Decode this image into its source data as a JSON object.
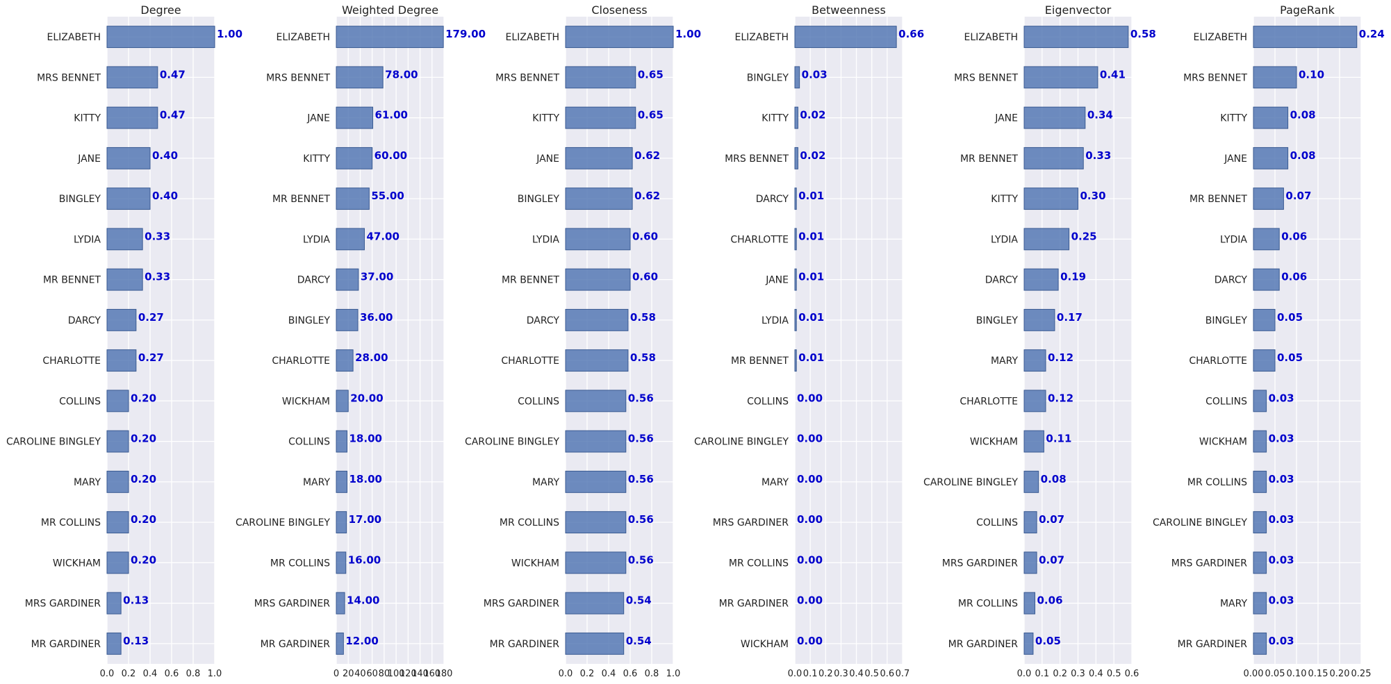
{
  "chart_data": [
    {
      "type": "bar",
      "orientation": "horizontal",
      "title": "Degree",
      "categories": [
        "ELIZABETH",
        "MRS BENNET",
        "KITTY",
        "JANE",
        "BINGLEY",
        "LYDIA",
        "MR BENNET",
        "DARCY",
        "CHARLOTTE",
        "COLLINS",
        "CAROLINE BINGLEY",
        "MARY",
        "MR COLLINS",
        "WICKHAM",
        "MRS GARDINER",
        "MR GARDINER"
      ],
      "values": [
        1.0,
        0.47,
        0.47,
        0.4,
        0.4,
        0.33,
        0.33,
        0.27,
        0.27,
        0.2,
        0.2,
        0.2,
        0.2,
        0.2,
        0.13,
        0.13
      ],
      "value_labels": [
        "1.00",
        "0.47",
        "0.47",
        "0.40",
        "0.40",
        "0.33",
        "0.33",
        "0.27",
        "0.27",
        "0.20",
        "0.20",
        "0.20",
        "0.20",
        "0.20",
        "0.13",
        "0.13"
      ],
      "xlim": [
        0,
        1.0
      ],
      "xticks": [
        0,
        0.2,
        0.4,
        0.6,
        0.8,
        1.0
      ],
      "xtick_labels": [
        "0.0",
        "0.2",
        "0.4",
        "0.6",
        "0.8",
        "1.0"
      ],
      "grid": true
    },
    {
      "type": "bar",
      "orientation": "horizontal",
      "title": "Weighted Degree",
      "categories": [
        "ELIZABETH",
        "MRS BENNET",
        "JANE",
        "KITTY",
        "MR BENNET",
        "LYDIA",
        "DARCY",
        "BINGLEY",
        "CHARLOTTE",
        "WICKHAM",
        "COLLINS",
        "MARY",
        "CAROLINE BINGLEY",
        "MR COLLINS",
        "MRS GARDINER",
        "MR GARDINER"
      ],
      "values": [
        179,
        78,
        61,
        60,
        55,
        47,
        37,
        36,
        28,
        20,
        18,
        18,
        17,
        16,
        14,
        12
      ],
      "value_labels": [
        "179.00",
        "78.00",
        "61.00",
        "60.00",
        "55.00",
        "47.00",
        "37.00",
        "36.00",
        "28.00",
        "20.00",
        "18.00",
        "18.00",
        "17.00",
        "16.00",
        "14.00",
        "12.00"
      ],
      "xlim": [
        0,
        180
      ],
      "xticks": [
        0,
        20,
        40,
        60,
        80,
        100,
        120,
        140,
        160,
        180
      ],
      "xtick_labels": [
        "0",
        "20",
        "40",
        "60",
        "80",
        "100",
        "120",
        "140",
        "160",
        "180"
      ],
      "grid": true
    },
    {
      "type": "bar",
      "orientation": "horizontal",
      "title": "Closeness",
      "categories": [
        "ELIZABETH",
        "MRS BENNET",
        "KITTY",
        "JANE",
        "BINGLEY",
        "LYDIA",
        "MR BENNET",
        "DARCY",
        "CHARLOTTE",
        "COLLINS",
        "CAROLINE BINGLEY",
        "MARY",
        "MR COLLINS",
        "WICKHAM",
        "MRS GARDINER",
        "MR GARDINER"
      ],
      "values": [
        1.0,
        0.65,
        0.65,
        0.62,
        0.62,
        0.6,
        0.6,
        0.58,
        0.58,
        0.56,
        0.56,
        0.56,
        0.56,
        0.56,
        0.54,
        0.54
      ],
      "value_labels": [
        "1.00",
        "0.65",
        "0.65",
        "0.62",
        "0.62",
        "0.60",
        "0.60",
        "0.58",
        "0.58",
        "0.56",
        "0.56",
        "0.56",
        "0.56",
        "0.56",
        "0.54",
        "0.54"
      ],
      "xlim": [
        0,
        1.0
      ],
      "xticks": [
        0,
        0.2,
        0.4,
        0.6,
        0.8,
        1.0
      ],
      "xtick_labels": [
        "0.0",
        "0.2",
        "0.4",
        "0.6",
        "0.8",
        "1.0"
      ],
      "grid": true
    },
    {
      "type": "bar",
      "orientation": "horizontal",
      "title": "Betweenness",
      "categories": [
        "ELIZABETH",
        "BINGLEY",
        "KITTY",
        "MRS BENNET",
        "DARCY",
        "CHARLOTTE",
        "JANE",
        "LYDIA",
        "MR BENNET",
        "COLLINS",
        "CAROLINE BINGLEY",
        "MARY",
        "MRS GARDINER",
        "MR COLLINS",
        "MR GARDINER",
        "WICKHAM"
      ],
      "values": [
        0.66,
        0.03,
        0.02,
        0.02,
        0.01,
        0.01,
        0.01,
        0.01,
        0.01,
        0.0,
        0.0,
        0.0,
        0.0,
        0.0,
        0.0,
        0.0
      ],
      "value_labels": [
        "0.66",
        "0.03",
        "0.02",
        "0.02",
        "0.01",
        "0.01",
        "0.01",
        "0.01",
        "0.01",
        "0.00",
        "0.00",
        "0.00",
        "0.00",
        "0.00",
        "0.00",
        "0.00"
      ],
      "xlim": [
        0,
        0.7
      ],
      "xticks": [
        0,
        0.1,
        0.2,
        0.3,
        0.4,
        0.5,
        0.6,
        0.7
      ],
      "xtick_labels": [
        "0.0",
        "0.1",
        "0.2",
        "0.3",
        "0.4",
        "0.5",
        "0.6",
        "0.7"
      ],
      "grid": true
    },
    {
      "type": "bar",
      "orientation": "horizontal",
      "title": "Eigenvector",
      "categories": [
        "ELIZABETH",
        "MRS BENNET",
        "JANE",
        "MR BENNET",
        "KITTY",
        "LYDIA",
        "DARCY",
        "BINGLEY",
        "MARY",
        "CHARLOTTE",
        "WICKHAM",
        "CAROLINE BINGLEY",
        "COLLINS",
        "MRS GARDINER",
        "MR COLLINS",
        "MR GARDINER"
      ],
      "values": [
        0.58,
        0.41,
        0.34,
        0.33,
        0.3,
        0.25,
        0.19,
        0.17,
        0.12,
        0.12,
        0.11,
        0.08,
        0.07,
        0.07,
        0.06,
        0.05
      ],
      "value_labels": [
        "0.58",
        "0.41",
        "0.34",
        "0.33",
        "0.30",
        "0.25",
        "0.19",
        "0.17",
        "0.12",
        "0.12",
        "0.11",
        "0.08",
        "0.07",
        "0.07",
        "0.06",
        "0.05"
      ],
      "xlim": [
        0,
        0.6
      ],
      "xticks": [
        0,
        0.1,
        0.2,
        0.3,
        0.4,
        0.5,
        0.6
      ],
      "xtick_labels": [
        "0.0",
        "0.1",
        "0.2",
        "0.3",
        "0.4",
        "0.5",
        "0.6"
      ],
      "grid": true
    },
    {
      "type": "bar",
      "orientation": "horizontal",
      "title": "PageRank",
      "categories": [
        "ELIZABETH",
        "MRS BENNET",
        "KITTY",
        "JANE",
        "MR BENNET",
        "LYDIA",
        "DARCY",
        "BINGLEY",
        "CHARLOTTE",
        "COLLINS",
        "WICKHAM",
        "MR COLLINS",
        "CAROLINE BINGLEY",
        "MRS GARDINER",
        "MARY",
        "MR GARDINER"
      ],
      "values": [
        0.24,
        0.1,
        0.08,
        0.08,
        0.07,
        0.06,
        0.06,
        0.05,
        0.05,
        0.03,
        0.03,
        0.03,
        0.03,
        0.03,
        0.03,
        0.03
      ],
      "value_labels": [
        "0.24",
        "0.10",
        "0.08",
        "0.08",
        "0.07",
        "0.06",
        "0.06",
        "0.05",
        "0.05",
        "0.03",
        "0.03",
        "0.03",
        "0.03",
        "0.03",
        "0.03",
        "0.03"
      ],
      "xlim": [
        0,
        0.25
      ],
      "xticks": [
        0,
        0.05,
        0.1,
        0.15,
        0.2,
        0.25
      ],
      "xtick_labels": [
        "0.00",
        "0.05",
        "0.10",
        "0.15",
        "0.20",
        "0.25"
      ],
      "grid": true
    }
  ],
  "colors": {
    "bar_fill": "#4c72b0",
    "bar_edge": "#3a5a92",
    "value_label": "#0000cc",
    "plot_background": "#eaeaf2",
    "grid": "#ffffff"
  }
}
